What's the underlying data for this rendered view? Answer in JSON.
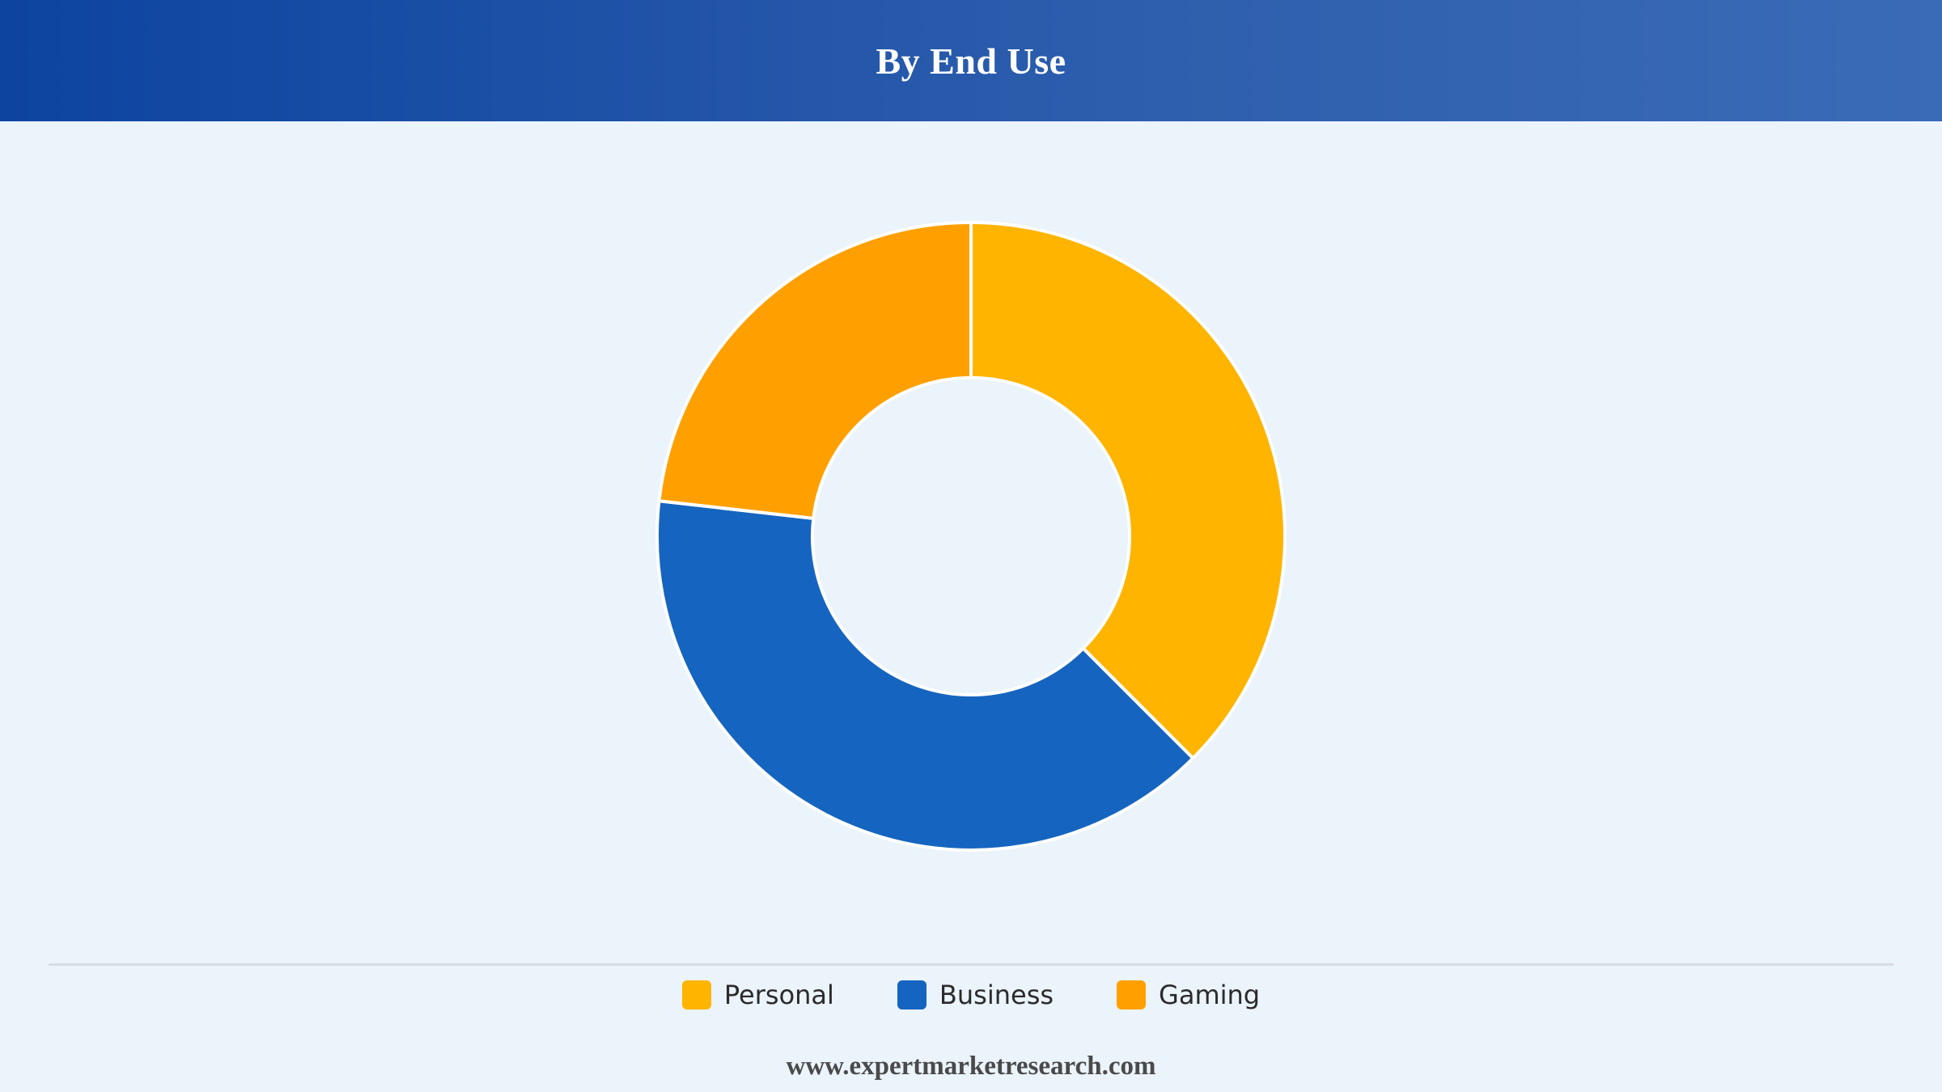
{
  "header": {
    "title": "By End Use"
  },
  "chart_data": {
    "type": "pie",
    "variant": "donut",
    "title": "By End Use",
    "categories": [
      "Personal",
      "Business",
      "Gaming"
    ],
    "values": [
      37.5,
      39.3,
      23.2
    ],
    "colors": [
      "#ffb400",
      "#1565c0",
      "#ffa000"
    ],
    "legend_position": "bottom-center"
  },
  "legend": {
    "items": [
      {
        "label": "Personal",
        "color": "#ffb400"
      },
      {
        "label": "Business",
        "color": "#1565c0"
      },
      {
        "label": "Gaming",
        "color": "#ffa000"
      }
    ]
  },
  "footer": {
    "source": "www.expertmarketresearch.com"
  }
}
